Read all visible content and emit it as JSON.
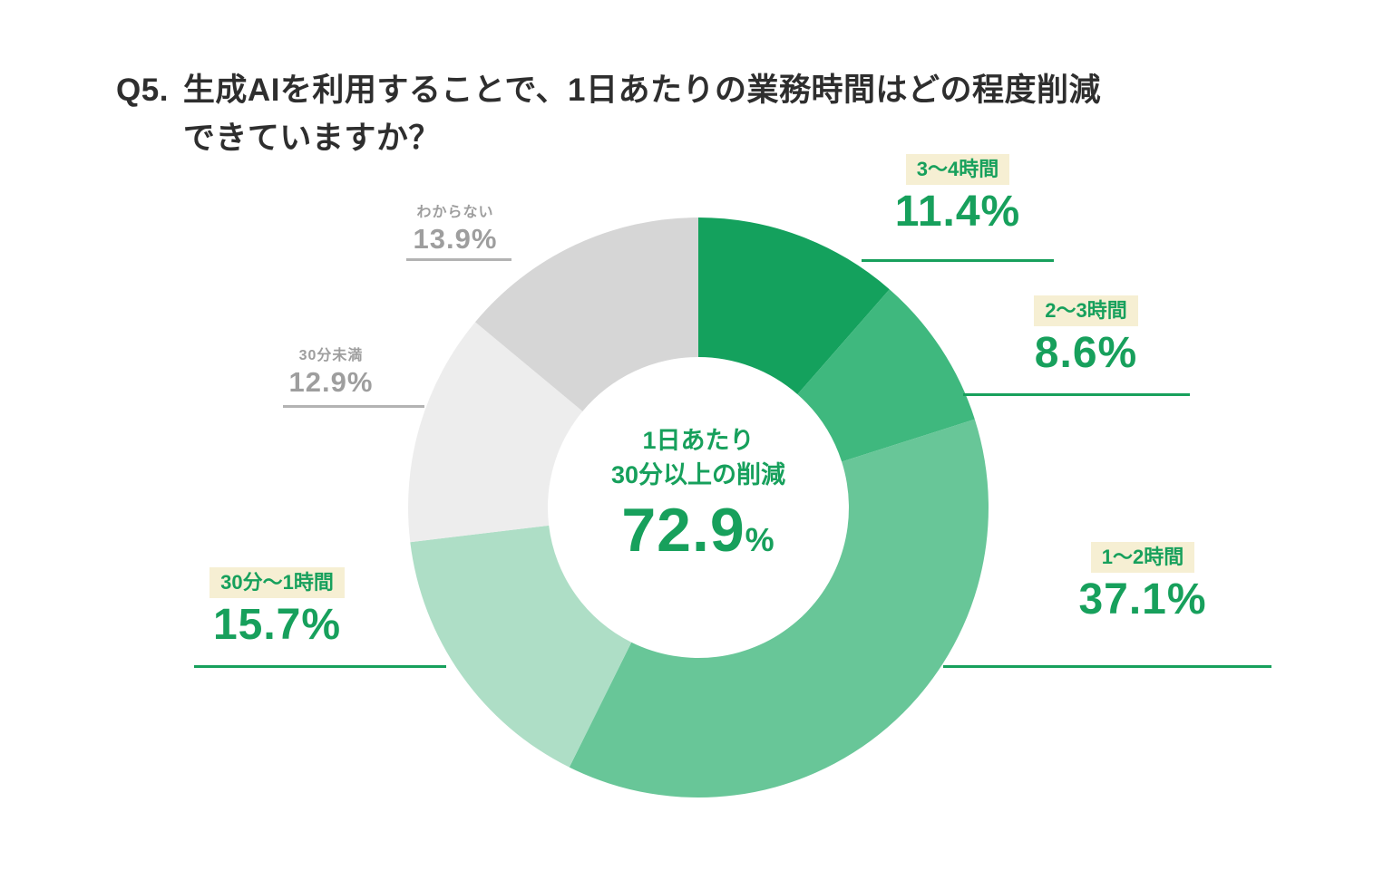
{
  "title": {
    "prefix": "Q5.",
    "line1": "生成AIを利用することで、1日あたりの業務時間はどの程度削減",
    "line2": "できていますか？"
  },
  "chart_data": {
    "type": "pie",
    "donut": true,
    "start_angle_deg": 0,
    "direction": "clockwise",
    "inner_radius_ratio": 0.52,
    "legend_position": "callouts-around-chart",
    "segments": [
      {
        "label": "3〜4時間",
        "value": 11.4,
        "display": "11.4%",
        "color": "#14a15d",
        "emphasis": "green"
      },
      {
        "label": "2〜3時間",
        "value": 8.6,
        "display": "8.6%",
        "color": "#3fb87e",
        "emphasis": "green"
      },
      {
        "label": "1〜2時間",
        "value": 37.1,
        "display": "37.1%",
        "color": "#68c698",
        "emphasis": "green"
      },
      {
        "label": "30分〜1時間",
        "value": 15.7,
        "display": "15.7%",
        "color": "#aedec6",
        "emphasis": "green"
      },
      {
        "label": "30分未満",
        "value": 12.9,
        "display": "12.9%",
        "color": "#ededed",
        "emphasis": "gray"
      },
      {
        "label": "わからない",
        "value": 13.9,
        "display": "13.9%",
        "color": "#d6d6d6",
        "emphasis": "gray"
      }
    ],
    "center": {
      "line1": "1日あたり",
      "line2": "30分以上の削減",
      "value": "72.9",
      "unit": "%"
    }
  },
  "colors": {
    "accent_green": "#17a05c",
    "label_highlight": "#f6efd3",
    "muted_gray": "#9e9e9e",
    "title_text": "#2e2e2e",
    "background": "#ffffff"
  }
}
